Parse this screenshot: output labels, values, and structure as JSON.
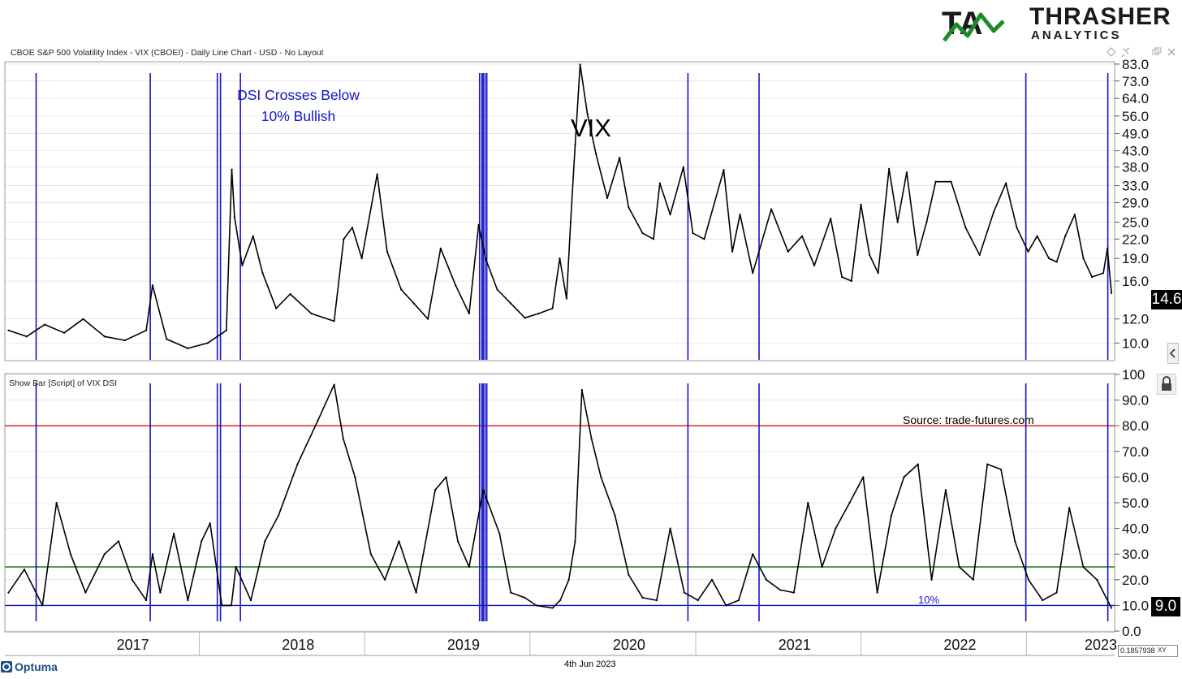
{
  "header": {
    "brand_main": "THRASHER",
    "brand_sub": "ANALYTICS",
    "chart_title": "CBOE S&P 500 Volatility Index - VIX (CBOEI) - Daily Line Chart - USD - No Layout"
  },
  "footer": {
    "app_name": "Optuma",
    "date": "4th Jun 2023",
    "xy_value": "0.1857938",
    "xy_label": "XY"
  },
  "colors": {
    "signal_lines": "#1414c8",
    "upper_threshold": "#e01010",
    "lower_threshold": "#1a7a1a",
    "ten_pct_line": "#1414c8",
    "series": "#000000",
    "grid": "#d8d8d8"
  },
  "chart_data": [
    {
      "type": "line",
      "panel": "upper",
      "title": "VIX",
      "annotation": "DSI Crosses Below 10% Bullish",
      "y_scale": "log",
      "ylim": [
        8.8,
        84.0
      ],
      "y_ticks": [
        "83.0",
        "73.0",
        "64.0",
        "56.0",
        "49.0",
        "43.0",
        "38.0",
        "33.0",
        "29.0",
        "25.0",
        "22.0",
        "19.0",
        "16.0",
        "12.0",
        "10.0"
      ],
      "last_value_label": "14.6",
      "grid": true,
      "series": [
        {
          "x": [
            "2016-10-01",
            "2016-11-10",
            "2016-12-20",
            "2017-02-01",
            "2017-03-15",
            "2017-05-01",
            "2017-06-15",
            "2017-08-01",
            "2017-08-15",
            "2017-09-15",
            "2017-11-01",
            "2017-12-15",
            "2018-01-25",
            "2018-02-06",
            "2018-02-12",
            "2018-03-01",
            "2018-03-25",
            "2018-04-15",
            "2018-05-15",
            "2018-06-15",
            "2018-08-01",
            "2018-09-20",
            "2018-10-11",
            "2018-10-30",
            "2018-11-20",
            "2018-12-24",
            "2019-01-15",
            "2019-02-15",
            "2019-03-15",
            "2019-04-15",
            "2019-05-13",
            "2019-06-15",
            "2019-07-15",
            "2019-08-05",
            "2019-08-20",
            "2019-09-15",
            "2019-10-15",
            "2019-11-15",
            "2019-12-15",
            "2020-01-15",
            "2020-01-31",
            "2020-02-15",
            "2020-02-24",
            "2020-03-05",
            "2020-03-16",
            "2020-04-01",
            "2020-04-20",
            "2020-05-15",
            "2020-06-11",
            "2020-07-01",
            "2020-08-01",
            "2020-08-25",
            "2020-09-08",
            "2020-10-01",
            "2020-10-30",
            "2020-11-20",
            "2020-12-15",
            "2021-01-27",
            "2021-02-15",
            "2021-03-04",
            "2021-04-01",
            "2021-05-12",
            "2021-06-18",
            "2021-07-19",
            "2021-08-15",
            "2021-09-20",
            "2021-10-15",
            "2021-11-05",
            "2021-11-26",
            "2021-12-15",
            "2022-01-03",
            "2022-01-27",
            "2022-02-15",
            "2022-03-07",
            "2022-03-31",
            "2022-04-20",
            "2022-05-10",
            "2022-06-13",
            "2022-07-15",
            "2022-08-15",
            "2022-09-15",
            "2022-10-12",
            "2022-11-05",
            "2022-11-30",
            "2022-12-20",
            "2023-01-15",
            "2023-02-01",
            "2023-02-20",
            "2023-03-13",
            "2023-04-01",
            "2023-04-20",
            "2023-05-15",
            "2023-05-24",
            "2023-06-02"
          ],
          "y": [
            11.0,
            10.5,
            11.5,
            10.8,
            12.0,
            10.5,
            10.2,
            11.0,
            15.5,
            10.3,
            9.6,
            10.0,
            11.0,
            37.3,
            26.0,
            18.0,
            22.5,
            17.0,
            13.0,
            14.5,
            12.5,
            11.8,
            22.0,
            24.0,
            19.0,
            36.0,
            20.0,
            15.0,
            13.5,
            12.0,
            20.5,
            15.5,
            12.5,
            24.5,
            19.0,
            15.0,
            13.5,
            12.1,
            12.5,
            13.0,
            19.0,
            14.0,
            25.0,
            45.0,
            82.7,
            57.0,
            42.0,
            30.0,
            40.8,
            28.0,
            23.0,
            22.0,
            33.6,
            26.5,
            38.0,
            23.0,
            22.0,
            37.2,
            20.0,
            26.5,
            17.0,
            27.6,
            20.0,
            22.5,
            18.0,
            25.7,
            16.5,
            16.0,
            28.6,
            19.5,
            17.0,
            37.5,
            25.0,
            36.5,
            19.5,
            25.0,
            34.0,
            34.0,
            24.0,
            19.5,
            27.0,
            33.6,
            24.0,
            20.0,
            22.5,
            19.0,
            18.5,
            22.5,
            26.5,
            19.0,
            16.5,
            17.0,
            20.5,
            14.6
          ]
        }
      ]
    },
    {
      "type": "line",
      "panel": "lower",
      "title": "Show Bar [Script] of VIX DSI",
      "source": "Source: trade-futures.com",
      "ylim": [
        0,
        100
      ],
      "y_ticks": [
        "100",
        "90.0",
        "80.0",
        "70.0",
        "60.0",
        "50.0",
        "40.0",
        "30.0",
        "20.0",
        "10.0",
        "0.0"
      ],
      "last_value_label": "9.0",
      "horizontal_lines": [
        {
          "value": 80,
          "color": "red"
        },
        {
          "value": 25,
          "color": "green"
        },
        {
          "value": 10,
          "color": "blue",
          "label": "10%"
        }
      ],
      "grid": true,
      "series": [
        {
          "x": [
            "2016-10-01",
            "2016-11-05",
            "2016-12-15",
            "2017-01-15",
            "2017-02-15",
            "2017-03-20",
            "2017-05-01",
            "2017-06-01",
            "2017-07-01",
            "2017-08-01",
            "2017-08-15",
            "2017-09-01",
            "2017-10-01",
            "2017-11-01",
            "2017-12-01",
            "2017-12-20",
            "2018-01-15",
            "2018-02-05",
            "2018-02-15",
            "2018-03-20",
            "2018-04-20",
            "2018-05-20",
            "2018-07-01",
            "2018-08-15",
            "2018-09-20",
            "2018-10-10",
            "2018-11-05",
            "2018-12-10",
            "2019-01-10",
            "2019-02-10",
            "2019-03-20",
            "2019-05-01",
            "2019-05-25",
            "2019-06-20",
            "2019-07-15",
            "2019-08-15",
            "2019-09-20",
            "2019-10-15",
            "2019-11-15",
            "2019-12-10",
            "2020-01-15",
            "2020-02-01",
            "2020-02-20",
            "2020-03-05",
            "2020-03-20",
            "2020-04-10",
            "2020-05-01",
            "2020-06-01",
            "2020-07-01",
            "2020-08-01",
            "2020-09-01",
            "2020-10-01",
            "2020-11-01",
            "2020-12-01",
            "2021-01-01",
            "2021-02-01",
            "2021-03-01",
            "2021-04-01",
            "2021-05-01",
            "2021-06-01",
            "2021-07-01",
            "2021-08-01",
            "2021-09-01",
            "2021-10-01",
            "2021-11-01",
            "2021-12-01",
            "2022-01-01",
            "2022-02-01",
            "2022-03-01",
            "2022-04-01",
            "2022-05-01",
            "2022-06-01",
            "2022-07-01",
            "2022-08-01",
            "2022-09-01",
            "2022-10-01",
            "2022-11-01",
            "2022-12-01",
            "2023-01-01",
            "2023-02-01",
            "2023-03-01",
            "2023-04-01",
            "2023-05-01",
            "2023-06-02"
          ],
          "y": [
            15.0,
            24.0,
            10.0,
            50.0,
            30.0,
            15.0,
            30.0,
            35.0,
            20.0,
            12.0,
            30.0,
            15.0,
            38.0,
            12.0,
            35.0,
            42.0,
            10.0,
            10.0,
            25.0,
            12.0,
            35.0,
            45.0,
            65.0,
            82.0,
            96.0,
            75.0,
            60.0,
            30.0,
            20.0,
            35.0,
            15.0,
            55.0,
            60.0,
            35.0,
            25.0,
            55.0,
            38.0,
            15.0,
            13.0,
            10.0,
            9.0,
            12.0,
            20.0,
            35.0,
            94.0,
            75.0,
            60.0,
            45.0,
            22.0,
            13.0,
            12.0,
            40.0,
            15.0,
            12.0,
            20.0,
            10.0,
            12.0,
            30.0,
            20.0,
            16.0,
            15.0,
            50.0,
            25.0,
            40.0,
            50.0,
            60.0,
            15.0,
            45.0,
            60.0,
            65.0,
            20.0,
            55.0,
            25.0,
            20.0,
            65.0,
            63.0,
            35.0,
            20.0,
            12.0,
            15.0,
            48.0,
            25.0,
            20.0,
            9.0
          ]
        }
      ]
    }
  ],
  "signals": [
    "2016-12-01",
    "2017-08-10",
    "2018-01-05",
    "2018-01-12",
    "2018-02-25",
    "2019-08-07",
    "2019-08-12",
    "2019-08-15",
    "2019-08-19",
    "2019-08-23",
    "2020-11-09",
    "2021-04-15",
    "2022-11-25",
    "2023-05-25"
  ],
  "x_axis": {
    "labels": [
      "2017",
      "2018",
      "2019",
      "2020",
      "2021",
      "2022",
      "2023"
    ]
  }
}
